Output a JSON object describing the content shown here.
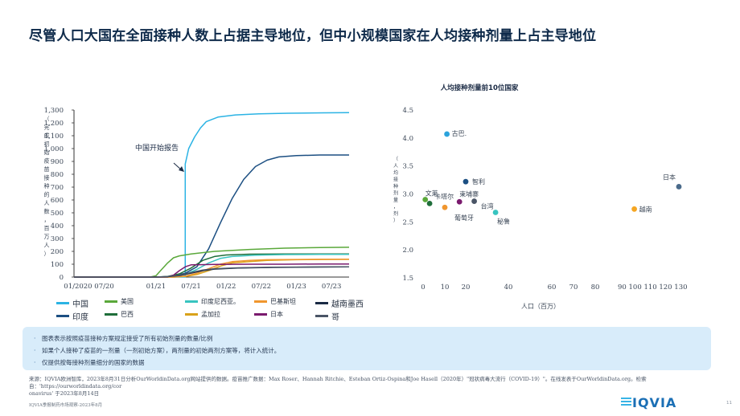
{
  "page": {
    "title": "尽管人口大国在全面接种人数上占据主导地位，但中小规模国家在人均接种剂量上占主导地位",
    "notes": [
      "图表表示按照疫苗接种方案规定接受了所有初始剂量的数量/比例",
      "如果个人接种了疫苗的一剂量（一剂初始方案），两剂量的初始两剂方案等，将计入统计。",
      "仅提供按每接种剂量细分的国家的数据"
    ],
    "note_bullet": "·",
    "source_line1": "来源：IQVIA欧洲智库，2023年8月31日分析OurWorldinData.org网站提供的数据。疫苗推广数据：Max Roser、Hannah Ritchie、Esteban Ortiz-Ospina和Joe Hasell（2020年）\"冠状病毒大流行（COVID-19）\"。在线发表于OurWorldinData.org。检索自：'https://ourworldindata.org/cor",
    "source_line2": "onavirus'  于2023年8月14日",
    "footer": "IQVIA季报制药市场观察-2023年8月",
    "page_number": "11",
    "logo_text": "IQVIA"
  },
  "chart_data": [
    {
      "type": "line",
      "title": "",
      "ylabel": "（完成初始疫苗接种的人数，百万人）",
      "ylim": [
        0,
        1300
      ],
      "yticks": [
        "0",
        "100",
        "200",
        "300",
        "400",
        "500",
        "600",
        "700",
        "800",
        "900",
        "1,000",
        "1,100",
        "1,200",
        "1,300"
      ],
      "ytick_values": [
        0,
        100,
        200,
        300,
        400,
        500,
        600,
        700,
        800,
        900,
        1000,
        1100,
        1200,
        1300
      ],
      "xlim": [
        0,
        47
      ],
      "xticks": [
        {
          "label": "01/2020 07/20",
          "pos": 2
        },
        {
          "label": "01/21",
          "pos": 14
        },
        {
          "label": "07/21",
          "pos": 20
        },
        {
          "label": "01/22",
          "pos": 26
        },
        {
          "label": "07/22",
          "pos": 32
        },
        {
          "label": "01/23",
          "pos": 38
        },
        {
          "label": "07/23",
          "pos": 44
        }
      ],
      "annotation": "中国开始报告",
      "series": [
        {
          "name": "中国",
          "color": "#2bb3e4",
          "x": [
            0,
            19.0,
            19.01,
            19.6,
            20.6,
            21.6,
            22.6,
            24.6,
            27.6,
            31.6,
            36.6,
            42.6,
            47
          ],
          "y": [
            0,
            0,
            880,
            1000,
            1090,
            1160,
            1210,
            1245,
            1262,
            1270,
            1275,
            1278,
            1280
          ]
        },
        {
          "name": "印度",
          "color": "#1c4f82",
          "x": [
            0,
            16,
            17,
            19,
            21,
            23,
            25,
            27,
            29,
            31,
            33,
            35,
            38,
            42,
            47
          ],
          "y": [
            0,
            0,
            10,
            30,
            80,
            220,
            420,
            610,
            760,
            860,
            910,
            935,
            945,
            950,
            950
          ]
        },
        {
          "name": "美国",
          "color": "#5aa83a",
          "x": [
            0,
            13,
            14,
            15,
            16,
            17,
            18,
            20,
            24,
            30,
            36,
            42,
            47
          ],
          "y": [
            0,
            0,
            10,
            60,
            110,
            150,
            165,
            180,
            200,
            215,
            225,
            230,
            232
          ]
        },
        {
          "name": "巴西",
          "color": "#1f6e3a",
          "x": [
            0,
            14,
            16,
            18,
            20,
            22,
            24,
            26,
            30,
            36,
            42,
            47
          ],
          "y": [
            0,
            0,
            5,
            25,
            70,
            130,
            160,
            172,
            178,
            180,
            180,
            180
          ]
        },
        {
          "name": "印度尼西亚。",
          "color": "#38c4c0",
          "x": [
            0,
            15,
            17,
            19,
            21,
            23,
            25,
            27,
            31,
            36,
            42,
            47
          ],
          "y": [
            0,
            0,
            5,
            20,
            60,
            110,
            145,
            160,
            170,
            175,
            176,
            176
          ]
        },
        {
          "name": "孟加拉",
          "color": "#d9a21a",
          "x": [
            0,
            17,
            19,
            21,
            23,
            25,
            27,
            30,
            33,
            38,
            42,
            47
          ],
          "y": [
            0,
            0,
            5,
            20,
            50,
            85,
            110,
            120,
            130,
            135,
            137,
            138
          ]
        },
        {
          "name": "巴基斯坦",
          "color": "#f0962e",
          "x": [
            0,
            17,
            19,
            21,
            23,
            25,
            27,
            30,
            33,
            38,
            42,
            47
          ],
          "y": [
            0,
            0,
            8,
            30,
            65,
            100,
            120,
            130,
            135,
            137,
            138,
            138
          ]
        },
        {
          "name": "日本",
          "color": "#7a1a6e",
          "x": [
            0,
            15,
            16,
            17,
            18,
            19,
            20,
            24,
            30,
            36,
            42,
            47
          ],
          "y": [
            0,
            0,
            2,
            15,
            50,
            80,
            95,
            98,
            100,
            100,
            102,
            102
          ]
        },
        {
          "name": "越南墨西",
          "color": "#1a2a44",
          "x": [
            0,
            14,
            16,
            18,
            20,
            22,
            24,
            28,
            34,
            42,
            47
          ],
          "y": [
            0,
            0,
            3,
            12,
            30,
            50,
            62,
            70,
            75,
            78,
            80
          ]
        },
        {
          "name": "哥",
          "color": "#4a5566",
          "x": [
            0,
            14,
            16,
            18,
            20,
            22,
            24,
            28,
            34,
            42,
            47
          ],
          "y": [
            0,
            0,
            4,
            15,
            35,
            55,
            65,
            72,
            76,
            79,
            80
          ]
        }
      ]
    },
    {
      "type": "scatter",
      "title": "人均接种剂量前10位国家",
      "xlabel": "人口（百万）",
      "ylabel": "（人均接种剂量，剂）",
      "ylim": [
        1.5,
        4.5
      ],
      "yticks": [
        "1.5",
        "2.0",
        "2.5",
        "3.0",
        "3.5",
        "4.0",
        "4.5"
      ],
      "ytick_values": [
        1.5,
        2.0,
        2.5,
        3.0,
        3.5,
        4.0,
        4.5
      ],
      "xticks": [
        "0",
        "10",
        "20",
        "40",
        "60",
        "70",
        "80",
        "90 100 110 120 130"
      ],
      "xtick_pos": [
        0,
        10,
        20,
        40,
        60,
        70,
        80,
        100
      ],
      "xlim": [
        0,
        135
      ],
      "points": [
        {
          "label": "古巴.",
          "x": 11,
          "y": 4.07,
          "color": "#2ba3dc"
        },
        {
          "label": "智利",
          "x": 20,
          "y": 3.22,
          "color": "#1c4f82"
        },
        {
          "label": "柬埔寨",
          "x": 17,
          "y": 2.86,
          "color": "#7a1a6e"
        },
        {
          "label": "文莱",
          "x": 1,
          "y": 2.9,
          "color": "#5aa83a"
        },
        {
          "label": "卡塔尔",
          "x": 3,
          "y": 2.83,
          "color": "#1f6e3a"
        },
        {
          "label": "台湾",
          "x": 24,
          "y": 2.87,
          "color": "#4a5566"
        },
        {
          "label": "葡萄牙",
          "x": 10,
          "y": 2.76,
          "color": "#f0962e"
        },
        {
          "label": "秘鲁",
          "x": 34,
          "y": 2.67,
          "color": "#38c4c0"
        },
        {
          "label": "越南",
          "x": 98,
          "y": 2.73,
          "color": "#f5a623"
        },
        {
          "label": "日本",
          "x": 125,
          "y": 3.13,
          "color": "#4a6a8a"
        }
      ]
    }
  ]
}
